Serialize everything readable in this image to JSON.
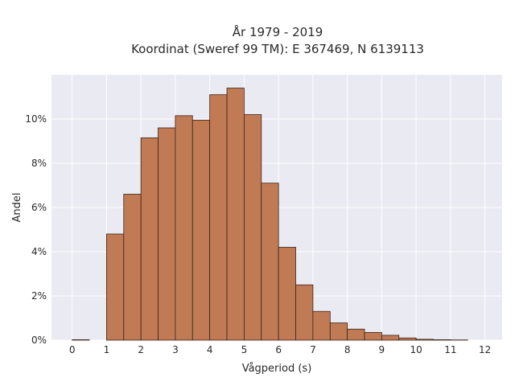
{
  "chart_data": {
    "type": "bar",
    "title_lines": [
      "År 1979 - 2019",
      "Koordinat (Sweref 99 TM): E 367469, N 6139113"
    ],
    "xlabel": "Vågperiod (s)",
    "ylabel": "Andel",
    "xlim": [
      -0.6,
      12.5
    ],
    "ylim": [
      0,
      0.12
    ],
    "x_ticks": [
      0,
      1,
      2,
      3,
      4,
      5,
      6,
      7,
      8,
      9,
      10,
      11,
      12
    ],
    "x_tick_labels": [
      "0",
      "1",
      "2",
      "3",
      "4",
      "5",
      "6",
      "7",
      "8",
      "9",
      "10",
      "11",
      "12"
    ],
    "y_ticks": [
      0,
      0.02,
      0.04,
      0.06,
      0.08,
      0.1
    ],
    "y_tick_labels": [
      "0%",
      "2%",
      "4%",
      "6%",
      "8%",
      "10%"
    ],
    "bin_width": 0.5,
    "bin_starts": [
      0,
      1,
      1.5,
      2,
      2.5,
      3,
      3.5,
      4,
      4.5,
      5,
      5.5,
      6,
      6.5,
      7,
      7.5,
      8,
      8.5,
      9,
      9.5,
      10,
      10.5,
      11
    ],
    "values": [
      0.0002,
      0.048,
      0.066,
      0.0915,
      0.096,
      0.1015,
      0.0995,
      0.111,
      0.114,
      0.102,
      0.071,
      0.042,
      0.025,
      0.013,
      0.0078,
      0.005,
      0.0035,
      0.0022,
      0.001,
      0.0004,
      0.0002,
      0.0001
    ],
    "colors": {
      "bar_fill": "#c07b55",
      "bar_edge": "#3a2416",
      "plot_bg": "#eaeaf2",
      "grid": "#ffffff"
    },
    "grid": true
  }
}
